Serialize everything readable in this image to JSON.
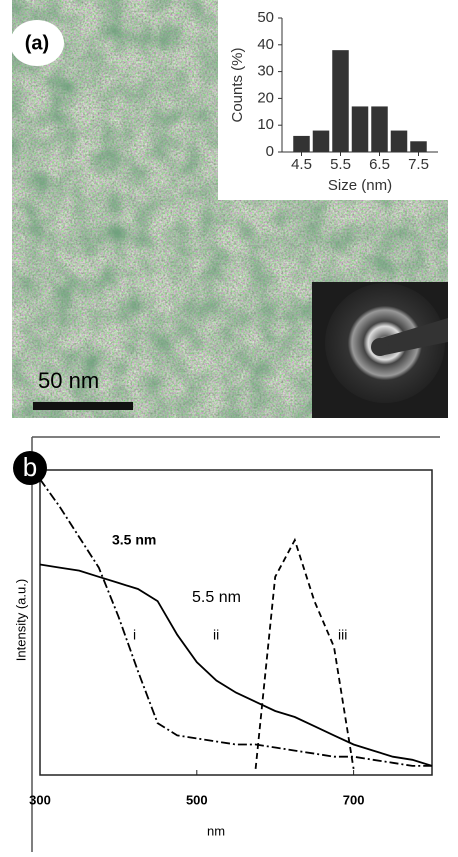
{
  "panel_a": {
    "label": "(a)",
    "scale_bar": "50 nm"
  },
  "chart_data": [
    {
      "type": "histogram",
      "ylabel": "Counts (%)",
      "xlabel": "Size (nm)",
      "bins": [
        4.25,
        4.75,
        5.25,
        5.75,
        6.25,
        6.75,
        7.25,
        7.75
      ],
      "values": [
        6,
        8,
        38,
        17,
        17,
        8,
        4
      ],
      "color": "#333333",
      "xlim": [
        4.0,
        8.0
      ],
      "xticks": [
        4.5,
        5.5,
        6.5,
        7.5
      ],
      "ylim": [
        0,
        50
      ],
      "yticks": [
        0,
        10,
        20,
        30,
        40,
        50
      ]
    },
    {
      "type": "line",
      "panel_label": "b",
      "xlabel": "nm",
      "ylabel": "Intensity (a.u.)",
      "x": [
        300,
        325,
        350,
        375,
        400,
        425,
        450,
        475,
        500,
        525,
        550,
        575,
        600,
        625,
        650,
        675,
        700,
        725,
        750,
        775,
        800
      ],
      "series": [
        {
          "name": "i",
          "color": "#000000",
          "linestyle": "dashdot",
          "values": [
            0.97,
            0.88,
            0.78,
            0.68,
            0.52,
            0.34,
            0.17,
            0.13,
            0.12,
            0.11,
            0.1,
            0.1,
            0.09,
            0.08,
            0.07,
            0.06,
            0.06,
            0.05,
            0.04,
            0.03,
            0.03
          ]
        },
        {
          "name": "ii",
          "color": "#000000",
          "linestyle": "solid",
          "values": [
            0.69,
            0.68,
            0.67,
            0.65,
            0.63,
            0.61,
            0.57,
            0.46,
            0.37,
            0.31,
            0.27,
            0.24,
            0.21,
            0.19,
            0.16,
            0.13,
            0.1,
            0.08,
            0.06,
            0.05,
            0.03
          ]
        },
        {
          "name": "iii",
          "color": "#000000",
          "linestyle": "dashed",
          "values": [
            null,
            null,
            null,
            null,
            null,
            null,
            null,
            null,
            null,
            null,
            null,
            0.02,
            0.65,
            0.77,
            0.57,
            0.42,
            0.02,
            null,
            null,
            null,
            null
          ]
        }
      ],
      "annotations": [
        "3.5 nm",
        "5.5 nm"
      ],
      "xlim": [
        300,
        800
      ],
      "xticks": [
        300,
        500,
        700
      ],
      "ylim": [
        0,
        1
      ]
    }
  ]
}
